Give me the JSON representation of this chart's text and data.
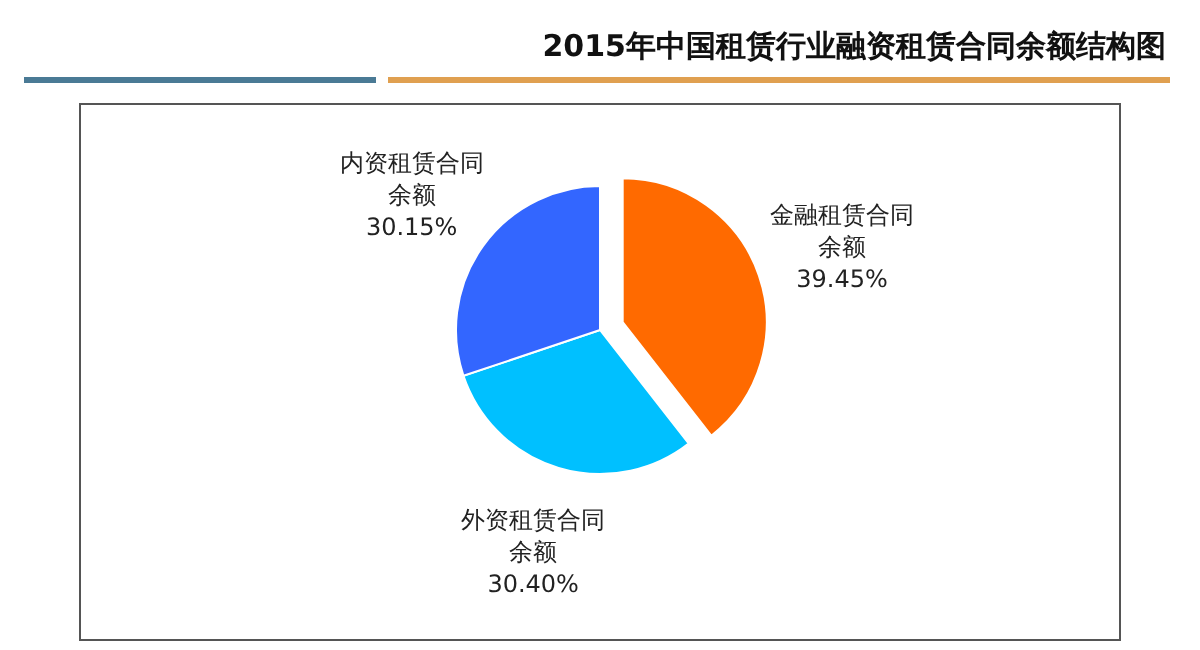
{
  "chart_data": {
    "type": "pie",
    "title": "2015年中国租赁行业融资租赁合同余额结构图",
    "categories": [
      "金融租赁合同余额",
      "外资租赁合同余额",
      "内资租赁合同余额"
    ],
    "values": [
      39.45,
      30.4,
      30.15
    ],
    "colors": [
      "#ff6a00",
      "#00c0ff",
      "#3366ff"
    ],
    "value_labels": [
      "39.45%",
      "30.40%",
      "30.15%"
    ]
  }
}
